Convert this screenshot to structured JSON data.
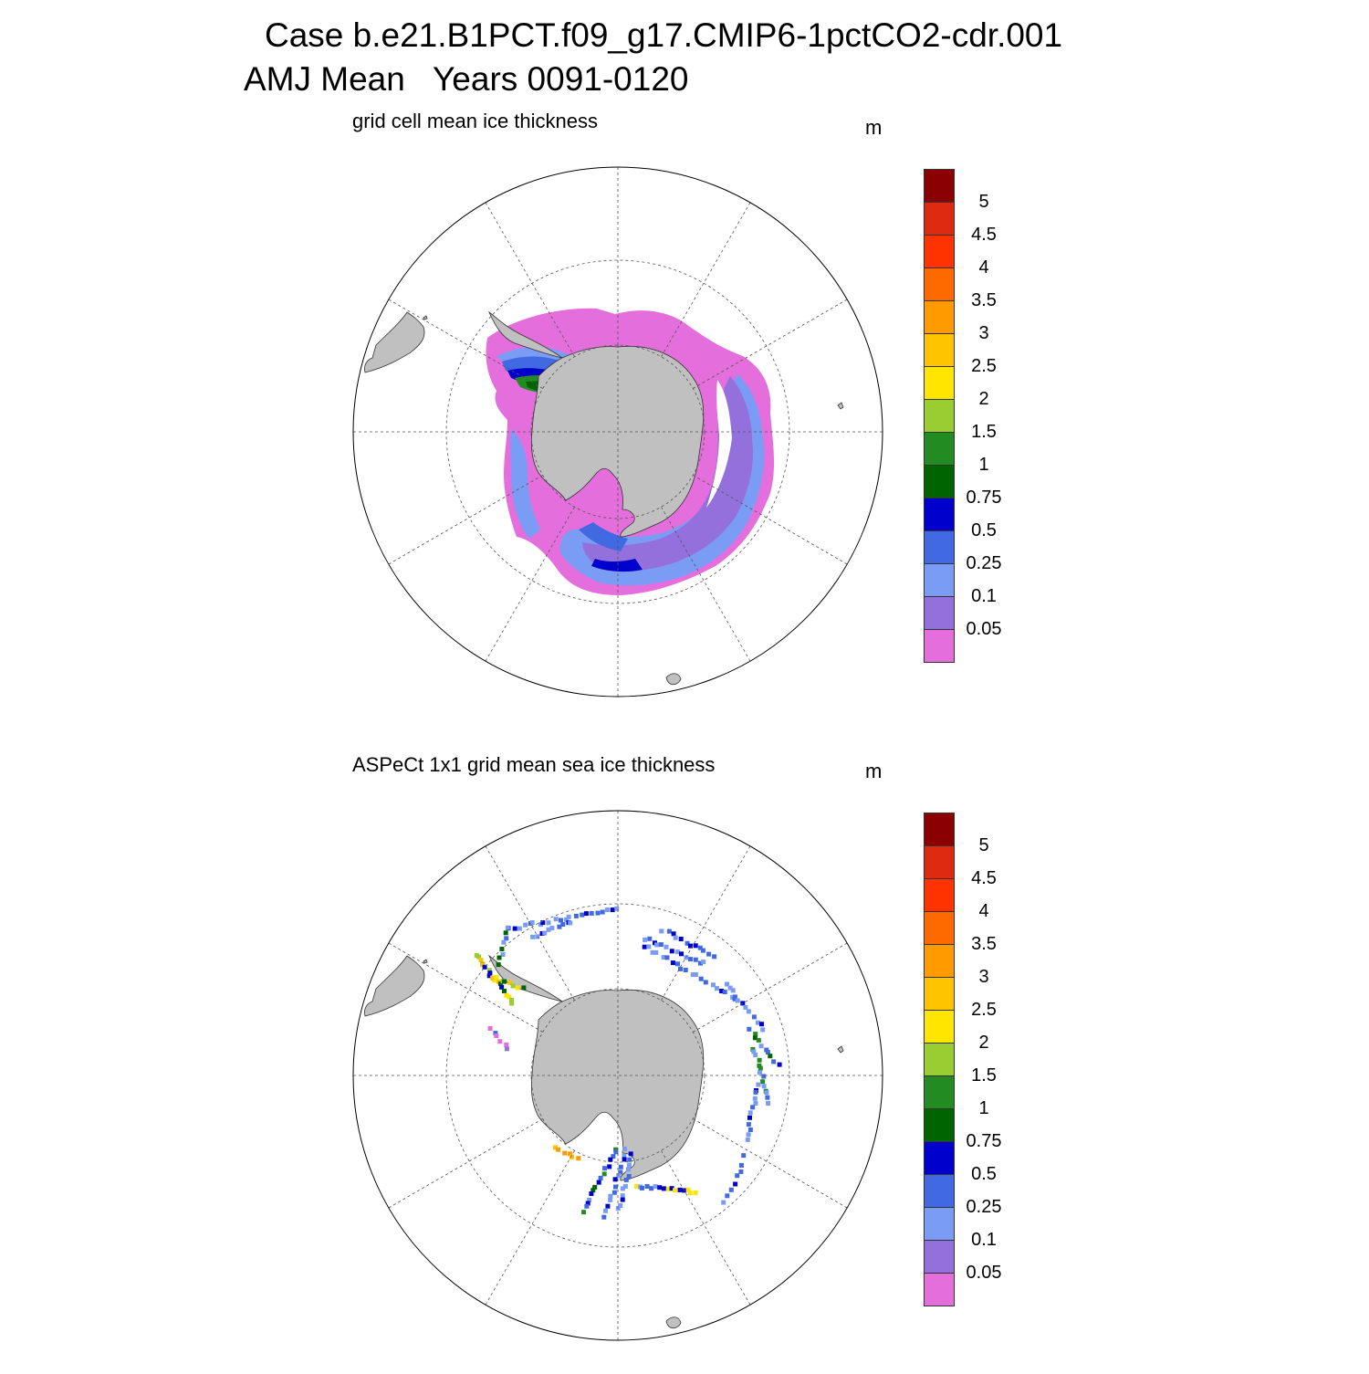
{
  "header": {
    "title_line1": "Case b.e21.B1PCT.f09_g17.CMIP6-1pctCO2-cdr.001",
    "title_line2": "AMJ Mean   Years 0091-0120"
  },
  "colors": {
    "land": "#c0c0c0",
    "coast": "#333333",
    "grid": "#555555",
    "boundary": "#000000",
    "scale": [
      "#e46fdc",
      "#9370db",
      "#7b9cf5",
      "#4169e1",
      "#0000cd",
      "#006400",
      "#228b22",
      "#9acd32",
      "#ffe600",
      "#ffc400",
      "#ff9a00",
      "#ff6a00",
      "#ff3300",
      "#dd2a10",
      "#8b0000"
    ]
  },
  "colorbar": {
    "labels": [
      "0.05",
      "0.1",
      "0.25",
      "0.5",
      "0.75",
      "1",
      "1.5",
      "2",
      "2.5",
      "3",
      "3.5",
      "4",
      "4.5",
      "5"
    ]
  },
  "panels": [
    {
      "title": "grid cell mean ice thickness",
      "units": "m",
      "field_type": "model"
    },
    {
      "title": "ASPeCt 1x1 grid mean sea ice thickness",
      "units": "m",
      "field_type": "observations"
    }
  ],
  "map": {
    "projection": "south polar stereographic",
    "grid": "dashed lat/lon lines"
  }
}
